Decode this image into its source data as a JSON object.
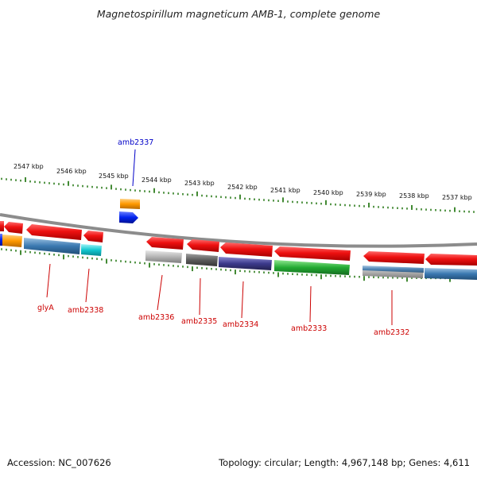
{
  "title": "Magnetospirillum magneticum AMB-1, complete genome",
  "footer": {
    "accession": "Accession: NC_007626",
    "topology": "Topology: circular; Length: 4,967,148 bp; Genes: 4,611"
  },
  "colors": {
    "backbone": "#8c8c8c",
    "tick": "#2e7d1e",
    "label_forward": "#0000c8",
    "label_reverse": "#cc0000"
  },
  "kbp_labels": [
    "2547 kbp",
    "2546 kbp",
    "2545 kbp",
    "2544 kbp",
    "2543 kbp",
    "2542 kbp",
    "2541 kbp",
    "2540 kbp",
    "2539 kbp",
    "2538 kbp",
    "2537 kbp"
  ],
  "gene_labels": {
    "amb2337": "amb2337",
    "glyA": "glyA",
    "amb2338": "amb2338",
    "amb2336": "amb2336",
    "amb2335": "amb2335",
    "amb2334": "amb2334",
    "amb2333": "amb2333",
    "amb2332": "amb2332"
  },
  "feature_colors": {
    "cds": "#ee1111",
    "orange": "#ff9900",
    "blue": "#0022ee",
    "steel": "#3a78b0",
    "cyan": "#11c7cf",
    "lightgray": "#b4b4b4",
    "darkgray": "#5c5c5c",
    "purple": "#3c3a8c",
    "green": "#22aa33"
  }
}
